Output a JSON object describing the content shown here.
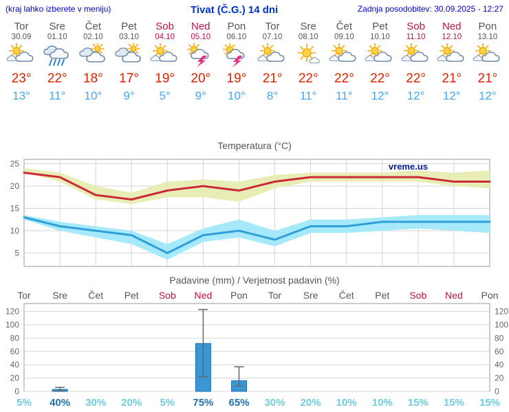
{
  "header": {
    "left_note": "(kraj lahko izberete v meniju)",
    "title": "Tivat (Č.G.) 14 dni",
    "updated": "Zadnja posodobitev: 30.09.2025 - 12:27"
  },
  "colors": {
    "accent_blue": "#0000cc",
    "weekend_red": "#bb1144",
    "tmax_red": "#dd2200",
    "tmin_blue": "#44a7f0",
    "bar_blue": "#3a97d4",
    "prob_cyan": "#70cce0",
    "prob_emphasis": "#2470ad"
  },
  "days": [
    {
      "name": "Tor",
      "date": "30.09",
      "weekend": false,
      "icon": "sun-cloud",
      "tmax": 23,
      "tmin": 13
    },
    {
      "name": "Sre",
      "date": "01.10",
      "weekend": false,
      "icon": "rain",
      "tmax": 22,
      "tmin": 11
    },
    {
      "name": "Čet",
      "date": "02.10",
      "weekend": false,
      "icon": "cloudy",
      "tmax": 18,
      "tmin": 10
    },
    {
      "name": "Pet",
      "date": "03.10",
      "weekend": false,
      "icon": "cloudy",
      "tmax": 17,
      "tmin": 9
    },
    {
      "name": "Sob",
      "date": "04.10",
      "weekend": true,
      "icon": "sun-cloud",
      "tmax": 19,
      "tmin": 5
    },
    {
      "name": "Ned",
      "date": "05.10",
      "weekend": true,
      "icon": "thunder",
      "tmax": 20,
      "tmin": 9
    },
    {
      "name": "Pon",
      "date": "06.10",
      "weekend": false,
      "icon": "thunder",
      "tmax": 19,
      "tmin": 10
    },
    {
      "name": "Tor",
      "date": "07.10",
      "weekend": false,
      "icon": "sun-cloud",
      "tmax": 21,
      "tmin": 8
    },
    {
      "name": "Sre",
      "date": "08.10",
      "weekend": false,
      "icon": "sunny",
      "tmax": 22,
      "tmin": 11
    },
    {
      "name": "Čet",
      "date": "09.10",
      "weekend": false,
      "icon": "sun-cloud",
      "tmax": 22,
      "tmin": 11
    },
    {
      "name": "Pet",
      "date": "10.10",
      "weekend": false,
      "icon": "sun-cloud",
      "tmax": 22,
      "tmin": 12
    },
    {
      "name": "Sob",
      "date": "11.10",
      "weekend": true,
      "icon": "sun-cloud",
      "tmax": 22,
      "tmin": 12
    },
    {
      "name": "Ned",
      "date": "12.10",
      "weekend": true,
      "icon": "sun-cloud",
      "tmax": 21,
      "tmin": 12
    },
    {
      "name": "Pon",
      "date": "13.10",
      "weekend": false,
      "icon": "sun-cloud",
      "tmax": 21,
      "tmin": 12
    }
  ],
  "chart_data": [
    {
      "type": "line",
      "title": "Temperatura (°C)",
      "x_labels": [
        "Tor",
        "Sre",
        "Čet",
        "Pet",
        "Sob",
        "Ned",
        "Pon",
        "Tor",
        "Sre",
        "Čet",
        "Pet",
        "Sob",
        "Ned",
        "Pon"
      ],
      "ylim": [
        2,
        26
      ],
      "yticks": [
        5,
        10,
        15,
        20,
        25
      ],
      "grid": true,
      "watermark": "vreme.us",
      "series": [
        {
          "name": "max temperature",
          "color": "#cc2936",
          "band_color": "#e7edb5",
          "values": [
            23,
            22,
            18,
            17,
            19,
            20,
            19,
            21,
            22,
            22,
            22,
            22,
            21,
            21
          ],
          "band_upper": [
            24,
            23,
            20,
            18.5,
            21,
            21.5,
            21,
            22.5,
            23,
            23,
            23,
            23.5,
            23,
            23.5
          ],
          "band_lower": [
            23,
            21,
            17,
            16,
            17.5,
            17.5,
            16.5,
            19.5,
            21,
            21,
            21,
            21,
            20,
            19.5
          ]
        },
        {
          "name": "min temperature",
          "color": "#2f9fd8",
          "band_color": "#a5e9fa",
          "values": [
            13,
            11,
            10,
            9,
            5,
            9,
            10,
            8,
            11,
            11,
            12,
            12,
            12,
            12
          ],
          "band_upper": [
            13.5,
            12,
            11,
            10,
            7,
            10.5,
            12.5,
            10,
            12.5,
            12.5,
            13,
            13.5,
            13.5,
            13.5
          ],
          "band_lower": [
            12.5,
            10,
            8.5,
            7,
            3.5,
            7.5,
            8.5,
            6.5,
            9.5,
            9.5,
            10,
            10.5,
            10,
            9.5
          ]
        }
      ]
    },
    {
      "type": "bar",
      "title": "Padavine (mm) / Verjetnost padavin (%)",
      "categories": [
        "Tor",
        "Sre",
        "Čet",
        "Pet",
        "Sob",
        "Ned",
        "Pon",
        "Tor",
        "Sre",
        "Čet",
        "Pet",
        "Sob",
        "Ned",
        "Pon"
      ],
      "values": [
        0,
        3,
        0,
        0,
        0,
        72,
        16,
        0,
        0,
        0,
        0,
        0,
        0,
        0
      ],
      "whisker_low": [
        null,
        1,
        null,
        null,
        null,
        22,
        8,
        null,
        null,
        null,
        null,
        null,
        null,
        null
      ],
      "whisker_high": [
        null,
        6,
        null,
        null,
        null,
        123,
        37,
        null,
        null,
        null,
        null,
        null,
        null,
        null
      ],
      "probabilities": [
        5,
        40,
        30,
        20,
        5,
        75,
        65,
        30,
        20,
        10,
        10,
        15,
        15,
        15
      ],
      "ylim": [
        0,
        132
      ],
      "yticks": [
        0,
        20,
        40,
        60,
        80,
        100,
        120
      ],
      "grid": true,
      "legend_position": "none"
    }
  ]
}
